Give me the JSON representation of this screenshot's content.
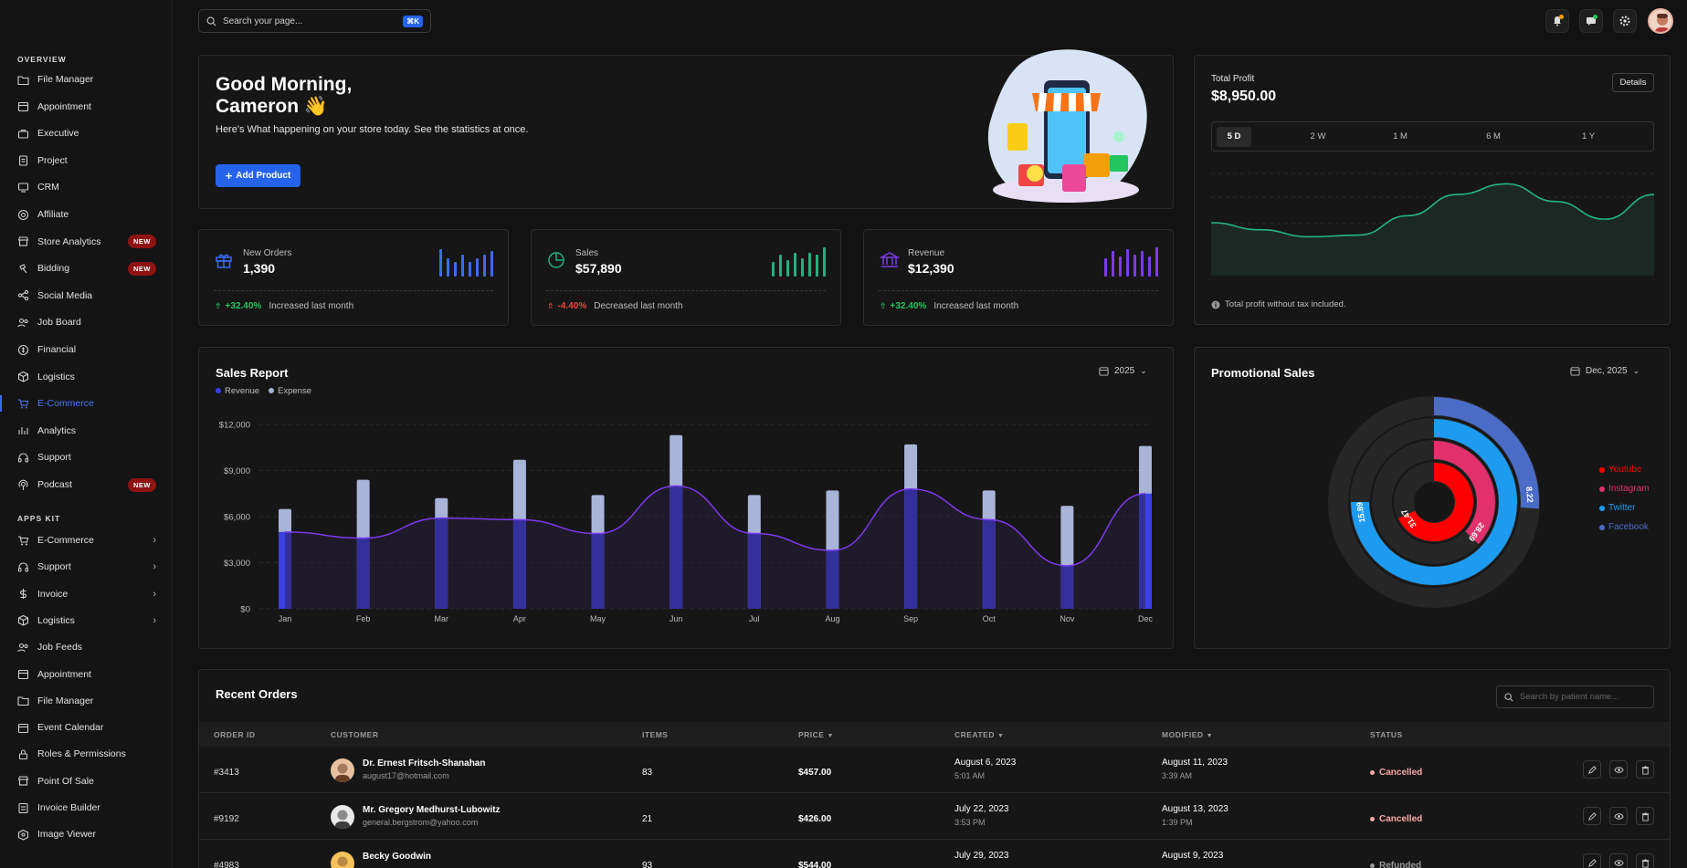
{
  "search": {
    "placeholder": "Search your page...",
    "shortcut": "⌘K"
  },
  "sidebar": {
    "overview_title": "OVERVIEW",
    "overview_items": [
      {
        "label": "File Manager",
        "icon": "folder-icon"
      },
      {
        "label": "Appointment",
        "icon": "calendar-icon"
      },
      {
        "label": "Executive",
        "icon": "briefcase-icon"
      },
      {
        "label": "Project",
        "icon": "clipboard-icon"
      },
      {
        "label": "CRM",
        "icon": "screen-icon"
      },
      {
        "label": "Affiliate",
        "icon": "network-icon"
      },
      {
        "label": "Store Analytics",
        "icon": "store-icon",
        "badge": "NEW"
      },
      {
        "label": "Bidding",
        "icon": "gavel-icon",
        "badge": "NEW"
      },
      {
        "label": "Social Media",
        "icon": "share-icon"
      },
      {
        "label": "Job Board",
        "icon": "users-icon"
      },
      {
        "label": "Financial",
        "icon": "coin-icon"
      },
      {
        "label": "Logistics",
        "icon": "box-icon"
      },
      {
        "label": "E-Commerce",
        "icon": "cart-icon",
        "active": true
      },
      {
        "label": "Analytics",
        "icon": "chart-icon"
      },
      {
        "label": "Support",
        "icon": "headset-icon"
      },
      {
        "label": "Podcast",
        "icon": "podcast-icon",
        "badge": "NEW"
      }
    ],
    "apps_title": "APPS KIT",
    "apps_items": [
      {
        "label": "E-Commerce",
        "icon": "cart-icon",
        "chevron": true
      },
      {
        "label": "Support",
        "icon": "headset-icon",
        "chevron": true
      },
      {
        "label": "Invoice",
        "icon": "dollar-icon",
        "chevron": true
      },
      {
        "label": "Logistics",
        "icon": "box-icon",
        "chevron": true
      },
      {
        "label": "Job Feeds",
        "icon": "users-icon"
      },
      {
        "label": "Appointment",
        "icon": "calendar-icon"
      },
      {
        "label": "File Manager",
        "icon": "folder-icon"
      },
      {
        "label": "Event Calendar",
        "icon": "calendar-icon"
      },
      {
        "label": "Roles & Permissions",
        "icon": "lock-icon"
      },
      {
        "label": "Point Of Sale",
        "icon": "store-icon"
      },
      {
        "label": "Invoice Builder",
        "icon": "document-icon"
      },
      {
        "label": "Image Viewer",
        "icon": "image-icon"
      }
    ]
  },
  "greeting": {
    "line1": "Good Morning,",
    "line2": "Cameron 👋",
    "subtitle": "Here's What happening on your store today. See the statistics at once.",
    "button": "Add Product"
  },
  "stats": [
    {
      "label": "New Orders",
      "value": "1,390",
      "change": "+32.40%",
      "change_dir": "up",
      "note": "Increased last month",
      "color": "#3b6cf0"
    },
    {
      "label": "Sales",
      "value": "$57,890",
      "change": "-4.40%",
      "change_dir": "down",
      "note": "Decreased last month",
      "color": "#22b07d"
    },
    {
      "label": "Revenue",
      "value": "$12,390",
      "change": "+32.40%",
      "change_dir": "up",
      "note": "Increased last month",
      "color": "#7c3aed"
    }
  ],
  "profit": {
    "title": "Total Profit",
    "value": "$8,950.00",
    "details": "Details",
    "tabs": [
      "5 D",
      "2 W",
      "1 M",
      "6 M",
      "1 Y"
    ],
    "active_tab": "5 D",
    "note": "Total profit without tax included."
  },
  "sales_report": {
    "title": "Sales Report",
    "year": "2025",
    "legend": [
      "Revenue",
      "Expense"
    ]
  },
  "promo": {
    "title": "Promotional Sales",
    "date": "Dec, 2025"
  },
  "chart_data": [
    {
      "type": "bar",
      "title": "Sales Report",
      "categories": [
        "Jan",
        "Feb",
        "Mar",
        "Apr",
        "May",
        "Jun",
        "Jul",
        "Aug",
        "Sep",
        "Oct",
        "Nov",
        "Dec"
      ],
      "series": [
        {
          "name": "Revenue",
          "values": [
            5000,
            4600,
            5900,
            5800,
            4900,
            8000,
            4900,
            3800,
            7800,
            5800,
            2800,
            7500
          ]
        },
        {
          "name": "Expense",
          "values": [
            6500,
            8400,
            7200,
            9700,
            7400,
            11300,
            7400,
            7700,
            10700,
            7700,
            6700,
            10600
          ]
        }
      ],
      "line": [
        5000,
        4600,
        5900,
        5800,
        4900,
        8000,
        4900,
        3800,
        7800,
        5800,
        2800,
        7500
      ],
      "yticks": [
        "$0",
        "$3,000",
        "$6,000",
        "$9,000",
        "$12,000"
      ],
      "ylim": [
        0,
        12000
      ]
    },
    {
      "type": "radialBar",
      "title": "Promotional Sales",
      "series": [
        {
          "name": "Facebook",
          "value": 8.22,
          "color": "#4b6cc6"
        },
        {
          "name": "Twitter",
          "value": 15.89,
          "color": "#1d9bf0"
        },
        {
          "name": "Instagram",
          "value": 28.69,
          "color": "#e1306c"
        },
        {
          "name": "Youtube",
          "value": 31.47,
          "color": "#ff0000"
        }
      ]
    },
    {
      "type": "area",
      "title": "Total Profit",
      "values": [
        3,
        2.6,
        2.2,
        2.3,
        3.4,
        4.6,
        5.2,
        4.2,
        3.2,
        4.6
      ]
    }
  ],
  "orders": {
    "title": "Recent Orders",
    "search_placeholder": "Search by patient name...",
    "headers": [
      "ORDER ID",
      "CUSTOMER",
      "ITEMS",
      "PRICE",
      "CREATED",
      "MODIFIED",
      "STATUS"
    ],
    "rows": [
      {
        "id": "#3413",
        "name": "Dr. Ernest Fritsch-Shanahan",
        "email": "august17@hotmail.com",
        "items": "83",
        "price": "$457.00",
        "created": "August 6, 2023",
        "created_time": "5:01 AM",
        "modified": "August 11, 2023",
        "modified_time": "3:39 AM",
        "status": "Cancelled",
        "status_color": "#f9a8a8"
      },
      {
        "id": "#9192",
        "name": "Mr. Gregory Medhurst-Lubowitz",
        "email": "general.bergstrom@yahoo.com",
        "items": "21",
        "price": "$426.00",
        "created": "July 22, 2023",
        "created_time": "3:53 PM",
        "modified": "August 13, 2023",
        "modified_time": "1:39 PM",
        "status": "Cancelled",
        "status_color": "#f9a8a8"
      },
      {
        "id": "#4983",
        "name": "Becky Goodwin",
        "email": "",
        "items": "93",
        "price": "$544.00",
        "created": "July 29, 2023",
        "created_time": "",
        "modified": "August 9, 2023",
        "modified_time": "",
        "status": "Refunded",
        "status_color": "#9a9a9a"
      }
    ]
  }
}
